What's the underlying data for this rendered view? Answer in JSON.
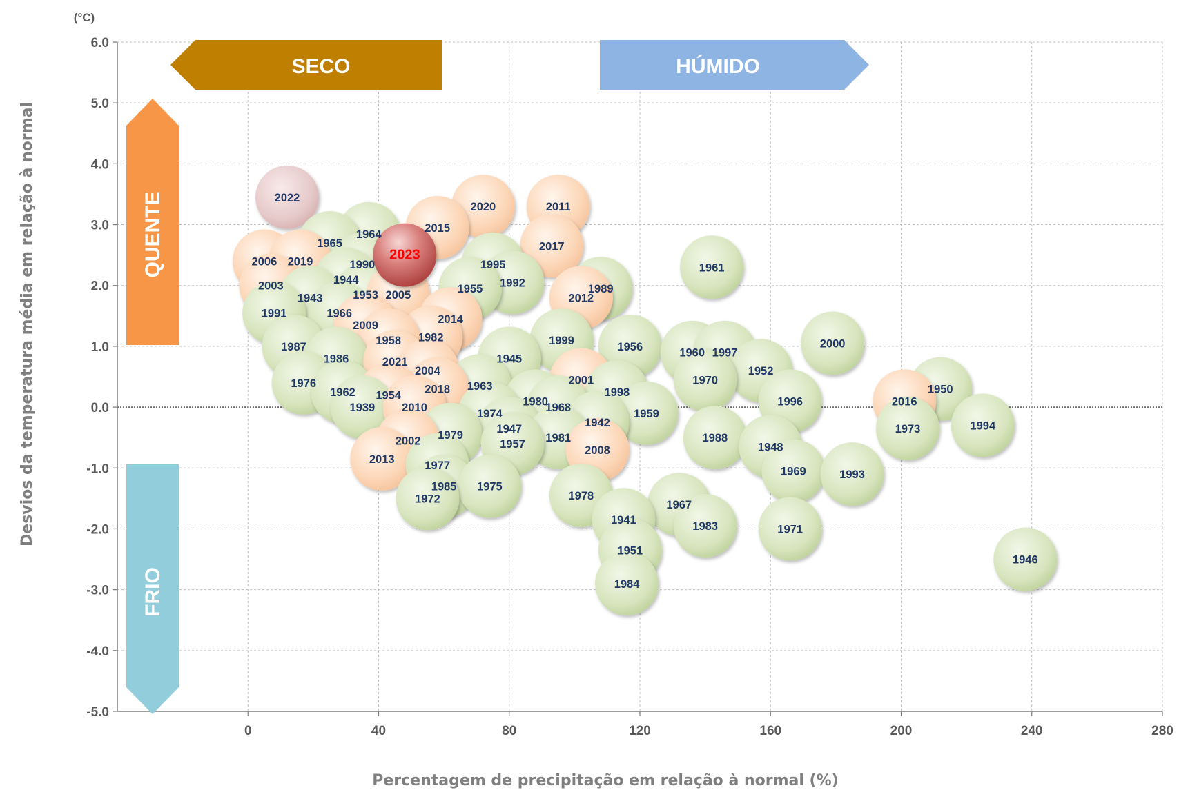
{
  "chart_data": {
    "type": "scatter",
    "title": "",
    "xlabel": "Percentagem de precipitação em relação à normal (%)",
    "ylabel": "Desvios da temperatura média em relação à normal",
    "y_unit": "(°C)",
    "xlim": [
      -40,
      280
    ],
    "ylim": [
      -5.0,
      6.0
    ],
    "x_ticks": [
      "0",
      "40",
      "80",
      "120",
      "160",
      "200",
      "240",
      "280"
    ],
    "y_ticks": [
      "6.0",
      "5.0",
      "4.0",
      "3.0",
      "2.0",
      "1.0",
      "0.0",
      "-1.0",
      "-2.0",
      "-3.0",
      "-4.0",
      "-5.0"
    ],
    "grid": true,
    "legend": "none",
    "region_labels": {
      "dry": "SECO",
      "wet": "HÚMIDO",
      "hot": "QUENTE",
      "cold": "FRIO"
    },
    "region_colors": {
      "dry": "#bf7f00",
      "wet": "#8eb4e3",
      "hot": "#f79646",
      "cold": "#92cddc"
    },
    "bubble_colors": {
      "normal": "#d7e4bd",
      "warm": "#fcd5b5",
      "extreme": "#e6b9b8",
      "highlight": "#c0504d"
    },
    "points": [
      {
        "label": "2022",
        "x": 12,
        "y": 3.45,
        "cat": "extreme"
      },
      {
        "label": "2020",
        "x": 72,
        "y": 3.3,
        "cat": "warm"
      },
      {
        "label": "2011",
        "x": 95,
        "y": 3.3,
        "cat": "warm"
      },
      {
        "label": "2015",
        "x": 58,
        "y": 2.95,
        "cat": "warm"
      },
      {
        "label": "1964",
        "x": 37,
        "y": 2.85,
        "cat": "normal"
      },
      {
        "label": "1965",
        "x": 25,
        "y": 2.7,
        "cat": "normal"
      },
      {
        "label": "2017",
        "x": 93,
        "y": 2.65,
        "cat": "warm"
      },
      {
        "label": "2006",
        "x": 5,
        "y": 2.4,
        "cat": "warm"
      },
      {
        "label": "2019",
        "x": 16,
        "y": 2.4,
        "cat": "warm"
      },
      {
        "label": "1990",
        "x": 35,
        "y": 2.35,
        "cat": "normal"
      },
      {
        "label": "1995",
        "x": 75,
        "y": 2.35,
        "cat": "normal"
      },
      {
        "label": "1961",
        "x": 142,
        "y": 2.3,
        "cat": "normal"
      },
      {
        "label": "1944",
        "x": 30,
        "y": 2.1,
        "cat": "normal"
      },
      {
        "label": "1992",
        "x": 81,
        "y": 2.05,
        "cat": "normal"
      },
      {
        "label": "2003",
        "x": 7,
        "y": 2.0,
        "cat": "warm"
      },
      {
        "label": "1989",
        "x": 108,
        "y": 1.95,
        "cat": "normal"
      },
      {
        "label": "1955",
        "x": 68,
        "y": 1.95,
        "cat": "normal"
      },
      {
        "label": "1953",
        "x": 36,
        "y": 1.85,
        "cat": "normal"
      },
      {
        "label": "2005",
        "x": 46,
        "y": 1.85,
        "cat": "warm"
      },
      {
        "label": "1943",
        "x": 19,
        "y": 1.8,
        "cat": "normal"
      },
      {
        "label": "2012",
        "x": 102,
        "y": 1.8,
        "cat": "warm"
      },
      {
        "label": "1966",
        "x": 28,
        "y": 1.55,
        "cat": "normal"
      },
      {
        "label": "1991",
        "x": 8,
        "y": 1.55,
        "cat": "normal"
      },
      {
        "label": "2014",
        "x": 62,
        "y": 1.45,
        "cat": "warm"
      },
      {
        "label": "2009",
        "x": 36,
        "y": 1.35,
        "cat": "warm"
      },
      {
        "label": "1982",
        "x": 56,
        "y": 1.15,
        "cat": "warm"
      },
      {
        "label": "1958",
        "x": 43,
        "y": 1.1,
        "cat": "warm"
      },
      {
        "label": "1999",
        "x": 96,
        "y": 1.1,
        "cat": "normal"
      },
      {
        "label": "1956",
        "x": 117,
        "y": 1.0,
        "cat": "normal"
      },
      {
        "label": "2000",
        "x": 179,
        "y": 1.05,
        "cat": "normal"
      },
      {
        "label": "1987",
        "x": 14,
        "y": 1.0,
        "cat": "normal"
      },
      {
        "label": "1960",
        "x": 136,
        "y": 0.9,
        "cat": "normal"
      },
      {
        "label": "1997",
        "x": 146,
        "y": 0.9,
        "cat": "normal"
      },
      {
        "label": "1945",
        "x": 80,
        "y": 0.8,
        "cat": "normal"
      },
      {
        "label": "1986",
        "x": 27,
        "y": 0.8,
        "cat": "normal"
      },
      {
        "label": "2021",
        "x": 45,
        "y": 0.75,
        "cat": "warm"
      },
      {
        "label": "2004",
        "x": 55,
        "y": 0.6,
        "cat": "warm"
      },
      {
        "label": "1952",
        "x": 157,
        "y": 0.6,
        "cat": "normal"
      },
      {
        "label": "1970",
        "x": 140,
        "y": 0.45,
        "cat": "normal"
      },
      {
        "label": "2001",
        "x": 102,
        "y": 0.45,
        "cat": "warm"
      },
      {
        "label": "1976",
        "x": 17,
        "y": 0.4,
        "cat": "normal"
      },
      {
        "label": "1963",
        "x": 71,
        "y": 0.35,
        "cat": "normal"
      },
      {
        "label": "2018",
        "x": 58,
        "y": 0.3,
        "cat": "warm"
      },
      {
        "label": "1950",
        "x": 212,
        "y": 0.3,
        "cat": "normal"
      },
      {
        "label": "1998",
        "x": 113,
        "y": 0.25,
        "cat": "normal"
      },
      {
        "label": "1962",
        "x": 29,
        "y": 0.25,
        "cat": "normal"
      },
      {
        "label": "1954",
        "x": 43,
        "y": 0.2,
        "cat": "warm"
      },
      {
        "label": "1980",
        "x": 88,
        "y": 0.1,
        "cat": "normal"
      },
      {
        "label": "1996",
        "x": 166,
        "y": 0.1,
        "cat": "normal"
      },
      {
        "label": "2016",
        "x": 201,
        "y": 0.1,
        "cat": "warm"
      },
      {
        "label": "1959",
        "x": 122,
        "y": -0.1,
        "cat": "normal"
      },
      {
        "label": "1939",
        "x": 35,
        "y": 0.0,
        "cat": "normal"
      },
      {
        "label": "2010",
        "x": 51,
        "y": 0.0,
        "cat": "warm"
      },
      {
        "label": "1968",
        "x": 95,
        "y": 0.0,
        "cat": "normal"
      },
      {
        "label": "1974",
        "x": 74,
        "y": -0.1,
        "cat": "normal"
      },
      {
        "label": "1942",
        "x": 107,
        "y": -0.25,
        "cat": "normal"
      },
      {
        "label": "1973",
        "x": 202,
        "y": -0.35,
        "cat": "normal"
      },
      {
        "label": "1994",
        "x": 225,
        "y": -0.3,
        "cat": "normal"
      },
      {
        "label": "1947",
        "x": 80,
        "y": -0.35,
        "cat": "normal"
      },
      {
        "label": "1979",
        "x": 62,
        "y": -0.45,
        "cat": "normal"
      },
      {
        "label": "1988",
        "x": 143,
        "y": -0.5,
        "cat": "normal"
      },
      {
        "label": "1981",
        "x": 95,
        "y": -0.5,
        "cat": "normal"
      },
      {
        "label": "2002",
        "x": 49,
        "y": -0.55,
        "cat": "warm"
      },
      {
        "label": "1957",
        "x": 81,
        "y": -0.6,
        "cat": "normal"
      },
      {
        "label": "1948",
        "x": 160,
        "y": -0.65,
        "cat": "normal"
      },
      {
        "label": "2008",
        "x": 107,
        "y": -0.7,
        "cat": "warm"
      },
      {
        "label": "2013",
        "x": 41,
        "y": -0.85,
        "cat": "warm"
      },
      {
        "label": "1977",
        "x": 58,
        "y": -0.95,
        "cat": "normal"
      },
      {
        "label": "1969",
        "x": 167,
        "y": -1.05,
        "cat": "normal"
      },
      {
        "label": "1993",
        "x": 185,
        "y": -1.1,
        "cat": "normal"
      },
      {
        "label": "1985",
        "x": 60,
        "y": -1.3,
        "cat": "normal"
      },
      {
        "label": "1975",
        "x": 74,
        "y": -1.3,
        "cat": "normal"
      },
      {
        "label": "1978",
        "x": 102,
        "y": -1.45,
        "cat": "normal"
      },
      {
        "label": "1967",
        "x": 132,
        "y": -1.6,
        "cat": "normal"
      },
      {
        "label": "1972",
        "x": 55,
        "y": -1.5,
        "cat": "normal"
      },
      {
        "label": "1941",
        "x": 115,
        "y": -1.85,
        "cat": "normal"
      },
      {
        "label": "1983",
        "x": 140,
        "y": -1.95,
        "cat": "normal"
      },
      {
        "label": "1971",
        "x": 166,
        "y": -2.0,
        "cat": "normal"
      },
      {
        "label": "1951",
        "x": 117,
        "y": -2.35,
        "cat": "normal"
      },
      {
        "label": "1946",
        "x": 238,
        "y": -2.5,
        "cat": "normal"
      },
      {
        "label": "1984",
        "x": 116,
        "y": -2.9,
        "cat": "normal"
      },
      {
        "label": "2023",
        "x": 48,
        "y": 2.5,
        "cat": "highlight"
      }
    ]
  }
}
